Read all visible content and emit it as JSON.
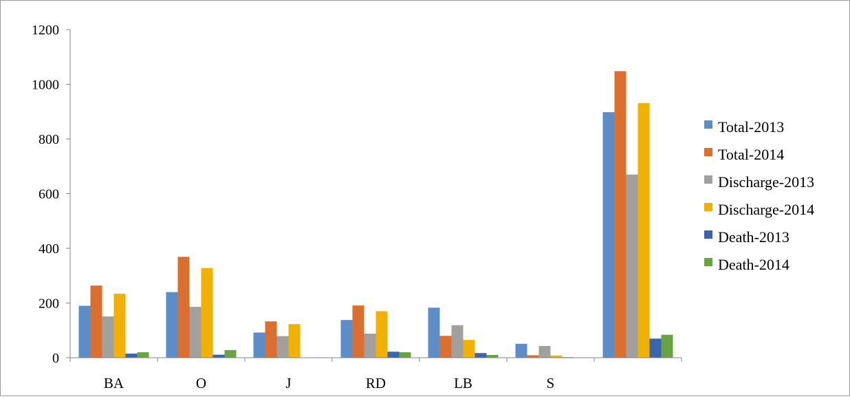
{
  "chart_data": {
    "type": "bar",
    "categories": [
      "BA",
      "O",
      "J",
      "RD",
      "LB",
      "S",
      ""
    ],
    "series": [
      {
        "name": "Total-2013",
        "color": "#5B8EC9",
        "values": [
          190,
          240,
          92,
          138,
          183,
          51,
          898
        ]
      },
      {
        "name": "Total-2014",
        "color": "#DD6F2E",
        "values": [
          264,
          369,
          133,
          191,
          80,
          9,
          1048
        ]
      },
      {
        "name": "Discharge-2013",
        "color": "#A0A0A0",
        "values": [
          151,
          186,
          79,
          88,
          119,
          43,
          670
        ]
      },
      {
        "name": "Discharge-2014",
        "color": "#F2B100",
        "values": [
          234,
          328,
          123,
          170,
          65,
          8,
          931
        ]
      },
      {
        "name": "Death-2013",
        "color": "#3A63B0",
        "values": [
          15,
          11,
          1,
          22,
          17,
          2,
          70
        ]
      },
      {
        "name": "Death-2014",
        "color": "#6AA341",
        "values": [
          20,
          28,
          1,
          20,
          10,
          1,
          84
        ]
      }
    ],
    "ylim": [
      0,
      1200
    ],
    "yticks": [
      0,
      200,
      400,
      600,
      800,
      1000,
      1200
    ],
    "title": "",
    "xlabel": "",
    "ylabel": "",
    "legend_position": "right",
    "grid": false
  }
}
